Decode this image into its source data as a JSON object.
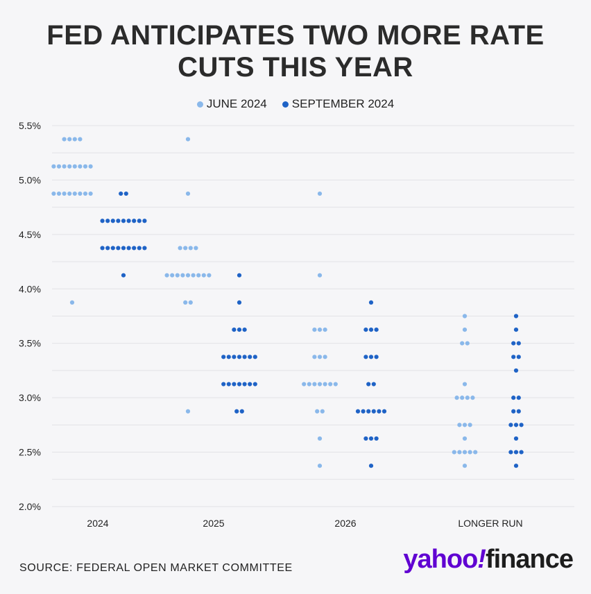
{
  "title_line1": "FED ANTICIPATES TWO MORE RATE",
  "title_line2": "CUTS THIS YEAR",
  "source": "SOURCE: FEDERAL OPEN MARKET COMMITTEE",
  "logo": {
    "yahoo": "yahoo",
    "bang": "!",
    "finance": "finance"
  },
  "colors": {
    "june": "#8ab8ea",
    "september": "#1f63c6",
    "grid": "#e2e2e6",
    "background": "#f6f6f8"
  },
  "chart_data": {
    "type": "scatter",
    "title": "FED ANTICIPATES TWO MORE RATE CUTS THIS YEAR",
    "xlabel": "",
    "ylabel": "",
    "ylim": [
      2.0,
      5.5
    ],
    "y_ticks": [
      "5.5%",
      "5.0%",
      "4.5%",
      "4.0%",
      "3.5%",
      "3.0%",
      "2.5%",
      "2.0%"
    ],
    "y_tick_values": [
      5.5,
      5.0,
      4.5,
      4.0,
      3.5,
      3.0,
      2.5,
      2.0
    ],
    "grid": true,
    "legend_position": "top-center",
    "categories": [
      "2024",
      "2025",
      "2026",
      "LONGER RUN"
    ],
    "series": [
      {
        "name": "JUNE 2024",
        "dots": [
          [
            [
              5.375,
              4
            ],
            [
              5.125,
              8
            ],
            [
              4.875,
              8
            ],
            [
              3.875,
              1
            ]
          ],
          [
            [
              5.375,
              1
            ],
            [
              4.875,
              1
            ],
            [
              4.375,
              4
            ],
            [
              4.125,
              9
            ],
            [
              3.875,
              2
            ],
            [
              2.875,
              1
            ]
          ],
          [
            [
              4.875,
              1
            ],
            [
              4.125,
              1
            ],
            [
              3.625,
              3
            ],
            [
              3.375,
              3
            ],
            [
              3.125,
              7
            ],
            [
              2.875,
              2
            ],
            [
              2.625,
              1
            ],
            [
              2.375,
              1
            ]
          ],
          [
            [
              3.75,
              1
            ],
            [
              3.625,
              1
            ],
            [
              3.5,
              2
            ],
            [
              3.125,
              1
            ],
            [
              3.0,
              4
            ],
            [
              2.75,
              3
            ],
            [
              2.625,
              1
            ],
            [
              2.5,
              5
            ],
            [
              2.375,
              1
            ]
          ]
        ]
      },
      {
        "name": "SEPTEMBER 2024",
        "dots": [
          [
            [
              4.875,
              2
            ],
            [
              4.625,
              9
            ],
            [
              4.375,
              9
            ],
            [
              4.125,
              1
            ]
          ],
          [
            [
              4.125,
              1
            ],
            [
              3.875,
              1
            ],
            [
              3.625,
              3
            ],
            [
              3.375,
              7
            ],
            [
              3.125,
              7
            ],
            [
              2.875,
              2
            ]
          ],
          [
            [
              3.875,
              1
            ],
            [
              3.625,
              3
            ],
            [
              3.375,
              3
            ],
            [
              3.125,
              2
            ],
            [
              2.875,
              6
            ],
            [
              2.625,
              3
            ],
            [
              2.375,
              1
            ]
          ],
          [
            [
              3.75,
              1
            ],
            [
              3.625,
              1
            ],
            [
              3.5,
              2
            ],
            [
              3.375,
              2
            ],
            [
              3.25,
              1
            ],
            [
              3.0,
              2
            ],
            [
              2.875,
              2
            ],
            [
              2.75,
              3
            ],
            [
              2.625,
              1
            ],
            [
              2.5,
              3
            ],
            [
              2.375,
              1
            ]
          ]
        ]
      }
    ]
  }
}
